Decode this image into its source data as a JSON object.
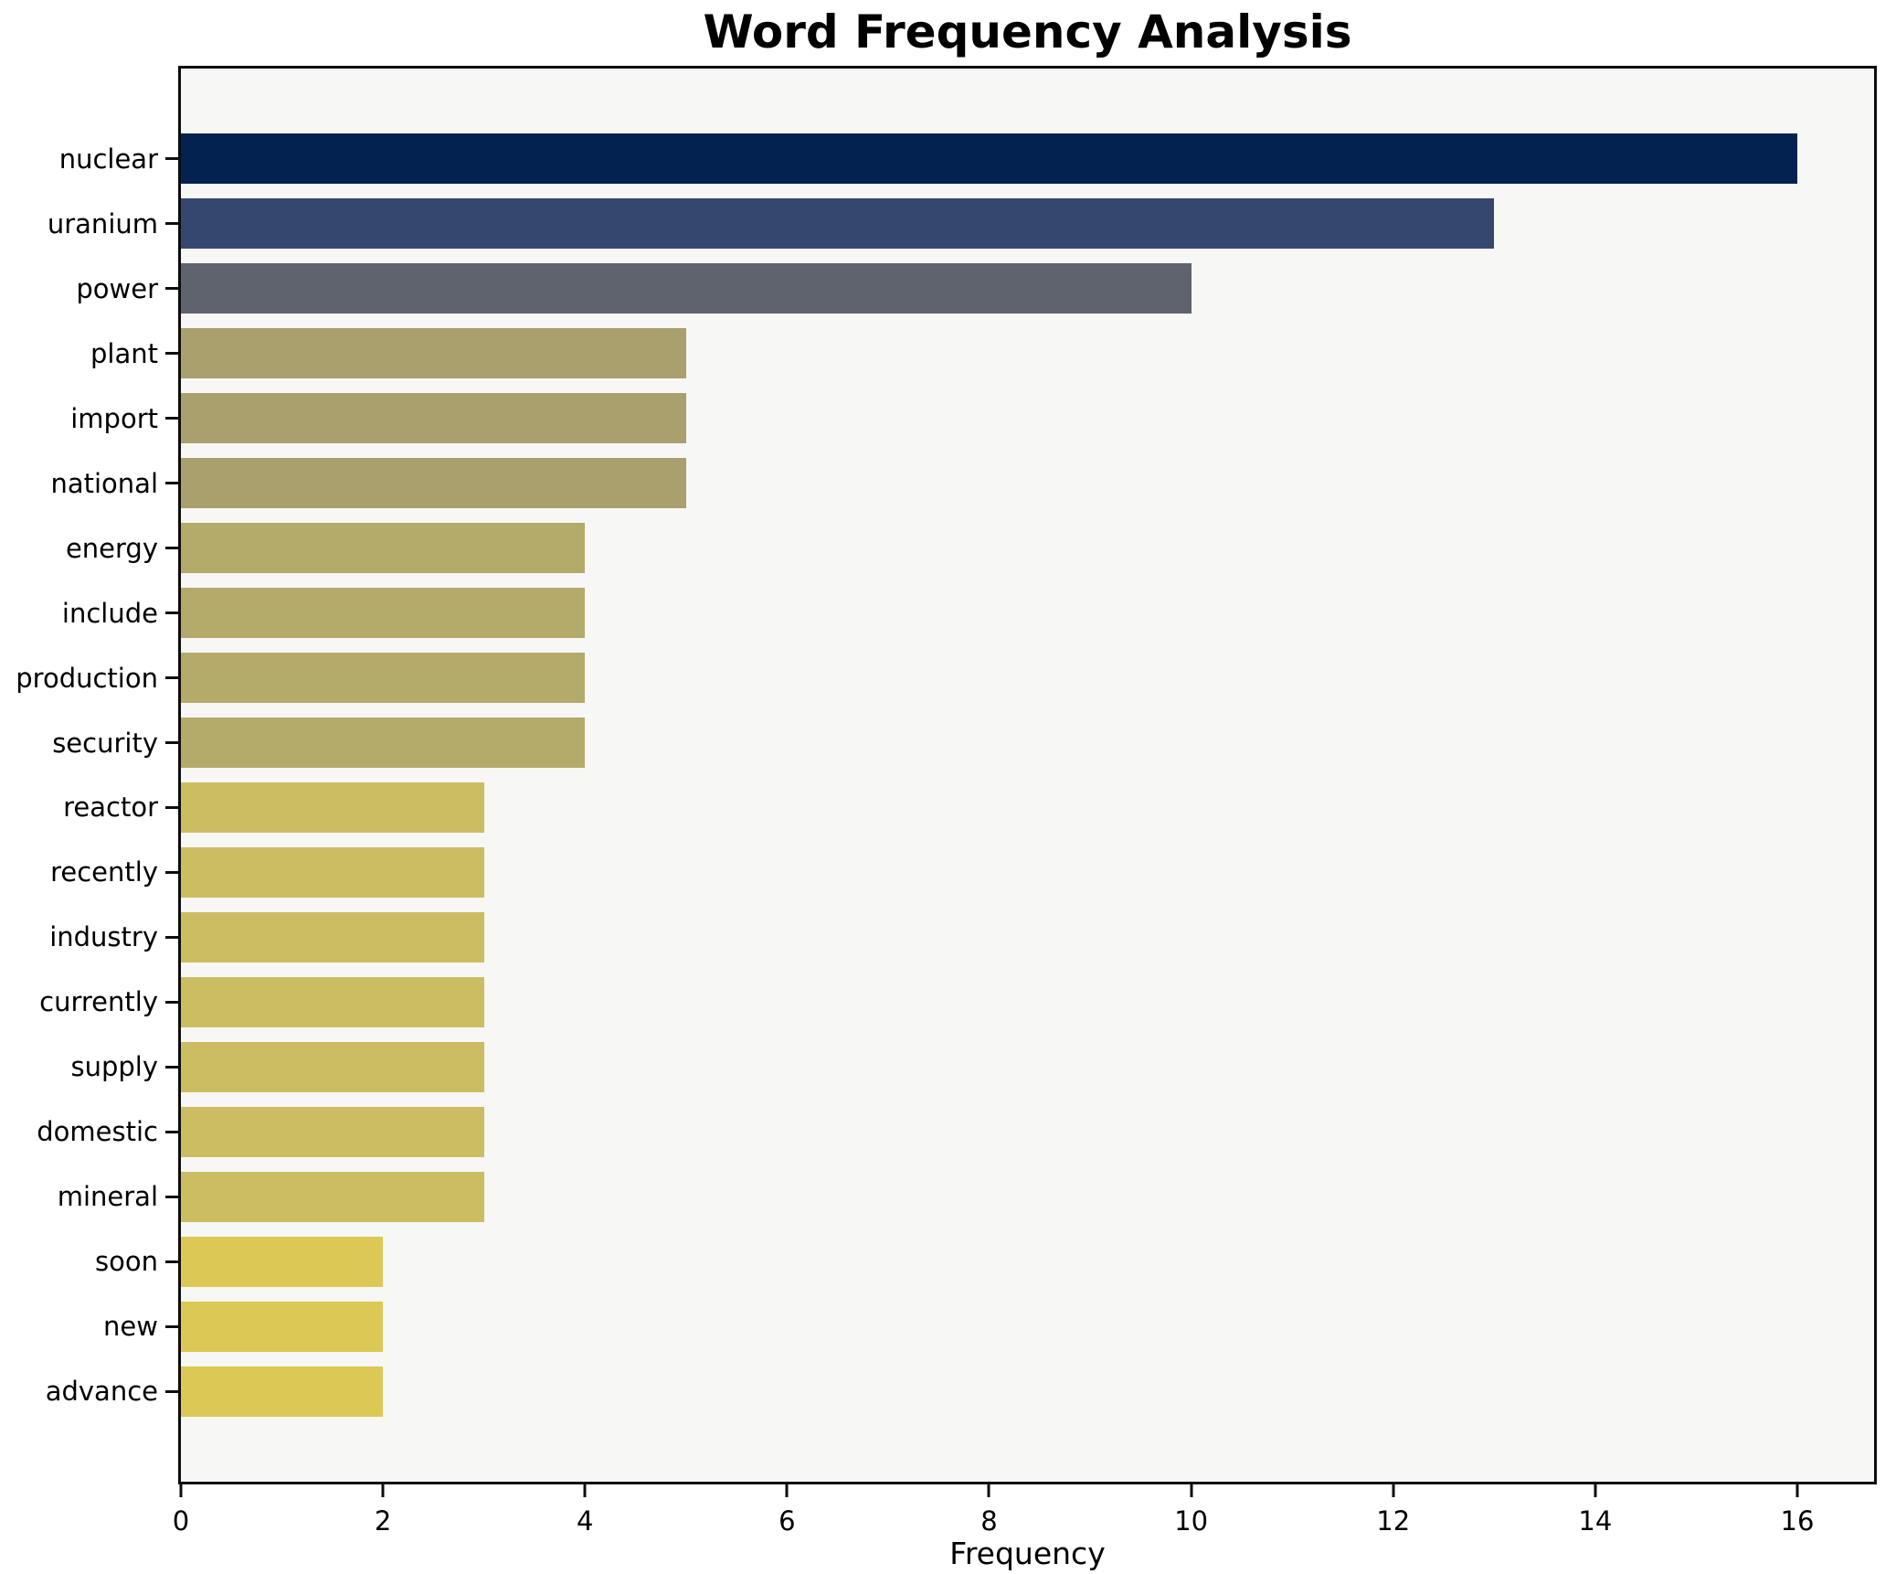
{
  "chart_data": {
    "type": "bar",
    "orientation": "horizontal",
    "title": "Word Frequency Analysis",
    "xlabel": "Frequency",
    "ylabel": "",
    "categories": [
      "nuclear",
      "uranium",
      "power",
      "plant",
      "import",
      "national",
      "energy",
      "include",
      "production",
      "security",
      "reactor",
      "recently",
      "industry",
      "currently",
      "supply",
      "domestic",
      "mineral",
      "soon",
      "new",
      "advance"
    ],
    "values": [
      16,
      13,
      10,
      5,
      5,
      5,
      4,
      4,
      4,
      4,
      3,
      3,
      3,
      3,
      3,
      3,
      3,
      2,
      2,
      2
    ],
    "bar_colors": [
      "#03224f",
      "#35466f",
      "#5f636e",
      "#a9a06e",
      "#a9a06e",
      "#a9a06e",
      "#b4aa6a",
      "#b4aa6a",
      "#b4aa6a",
      "#b4aa6a",
      "#ccbd62",
      "#ccbd62",
      "#ccbd62",
      "#ccbd62",
      "#ccbd62",
      "#ccbd62",
      "#ccbd62",
      "#dcc854",
      "#dcc854",
      "#dcc854"
    ],
    "xlim": [
      0,
      16.76
    ],
    "xticks": [
      0,
      2,
      4,
      6,
      8,
      10,
      12,
      14,
      16
    ],
    "grid": false,
    "legend_position": "none"
  },
  "colors": {
    "figure_bg": "#ffffff",
    "plot_bg": "#f7f7f6",
    "spine": "#0d0d0d",
    "text": "#000000"
  }
}
